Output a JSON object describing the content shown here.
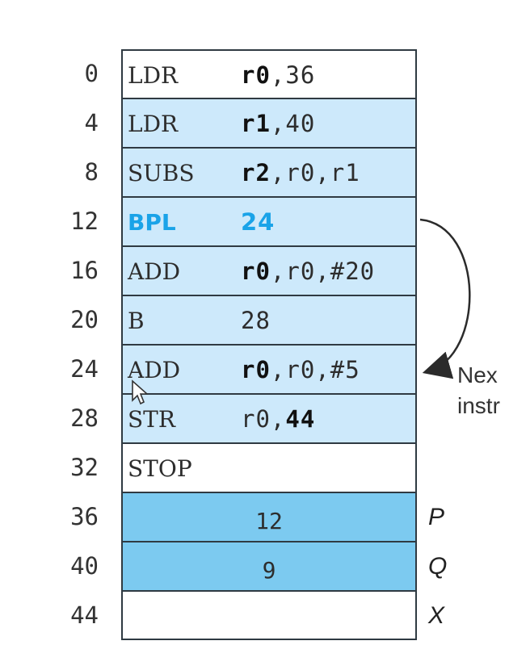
{
  "rows": [
    {
      "address": "0",
      "opcode": "LDR",
      "operand_bold": "r0",
      "operand_rest": ",36",
      "fill": "#ffffff"
    },
    {
      "address": "4",
      "opcode": "LDR",
      "operand_bold": "r1",
      "operand_rest": ",40",
      "fill": "#cde9fb"
    },
    {
      "address": "8",
      "opcode": "SUBS",
      "operand_bold": "r2",
      "operand_rest": ",r0,r1",
      "fill": "#cde9fb"
    },
    {
      "address": "12",
      "opcode": "BPL",
      "operand_bold": "24",
      "operand_rest": "",
      "fill": "#cde9fb",
      "highlight": true
    },
    {
      "address": "16",
      "opcode": "ADD",
      "operand_bold": "r0",
      "operand_rest": ",r0,#20",
      "fill": "#cde9fb"
    },
    {
      "address": "20",
      "opcode": "B",
      "operand_bold": "",
      "operand_rest": "28",
      "fill": "#cde9fb"
    },
    {
      "address": "24",
      "opcode": "ADD",
      "operand_bold": "r0",
      "operand_rest": ",r0,#5",
      "fill": "#cde9fb"
    },
    {
      "address": "28",
      "opcode": "STR",
      "operand_pre": "r0,",
      "operand_bold": "44",
      "operand_rest": "",
      "fill": "#cde9fb"
    },
    {
      "address": "32",
      "opcode": "STOP",
      "operand_bold": "",
      "operand_rest": "",
      "fill": "#ffffff"
    },
    {
      "address": "36",
      "value": "12",
      "label": "P",
      "fill": "#7ccaf0"
    },
    {
      "address": "40",
      "value": "9",
      "label": "Q",
      "fill": "#7ccaf0"
    },
    {
      "address": "44",
      "value": "",
      "label": "X",
      "fill": "#ffffff"
    }
  ],
  "branch_note": {
    "line1": "Nex",
    "line2": "instr"
  },
  "colors": {
    "highlight": "#1aa3e8",
    "border": "#2f3a42"
  }
}
